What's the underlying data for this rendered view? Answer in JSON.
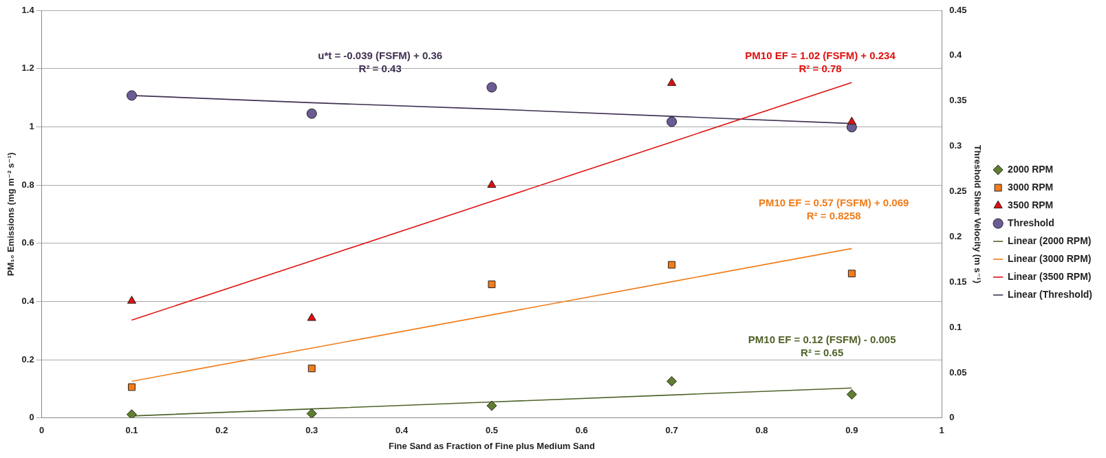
{
  "chart_data": {
    "type": "scatter",
    "xlabel": "Fine Sand as Fraction of Fine plus Medium Sand",
    "ylabel": "PM₁₀ Emissions (mg m⁻² s⁻¹)",
    "y2label": "Threshold Shear Velocity (m s⁻¹)",
    "x": [
      0.1,
      0.3,
      0.5,
      0.7,
      0.9
    ],
    "series": [
      {
        "name": "2000 RPM",
        "marker": "diamond",
        "color": "#5f7f2f",
        "values": [
          0.012,
          0.015,
          0.042,
          0.126,
          0.081
        ]
      },
      {
        "name": "3000 RPM",
        "marker": "square",
        "color": "#f07c1a",
        "values": [
          0.106,
          0.17,
          0.459,
          0.526,
          0.496
        ]
      },
      {
        "name": "3500 RPM",
        "marker": "triangle",
        "color": "#e01010",
        "values": [
          0.402,
          0.343,
          0.8,
          1.15,
          1.017
        ]
      },
      {
        "name": "Threshold",
        "marker": "circle",
        "color": "#6b5b95",
        "axis": "y2",
        "values": [
          0.356,
          0.336,
          0.365,
          0.327,
          0.321
        ]
      },
      {
        "name": "Linear (2000 RPM)",
        "type": "line",
        "marker": "none",
        "color": "#4f6228",
        "values": [
          0.007,
          0.031,
          0.055,
          0.079,
          0.103
        ]
      },
      {
        "name": "Linear (3000 RPM)",
        "type": "line",
        "marker": "none",
        "color": "#f07c1a",
        "values": [
          0.126,
          0.24,
          0.354,
          0.468,
          0.582
        ]
      },
      {
        "name": "Linear (3500 RPM)",
        "type": "line",
        "marker": "none",
        "color": "#e01010",
        "values": [
          0.336,
          0.54,
          0.744,
          0.948,
          1.152
        ]
      },
      {
        "name": "Linear (Threshold)",
        "type": "line",
        "marker": "none",
        "color": "#3f3151",
        "axis": "y2",
        "values": [
          0.356,
          0.348,
          0.341,
          0.333,
          0.325
        ]
      }
    ],
    "annotations": [
      "PM10 EF = 0.12 (FSFM) - 0.005\nR² = 0.65",
      "PM10 EF = 0.57 (FSFM) + 0.069\nR² = 0.8258",
      "PM10 EF = 1.02 (FSFM) + 0.234\nR² = 0.78",
      "u*t = -0.039 (FSFM) + 0.36\nR² = 0.43"
    ],
    "xlim": [
      0,
      1
    ],
    "xticks": [
      0,
      0.1,
      0.2,
      0.3,
      0.4,
      0.5,
      0.6,
      0.7,
      0.8,
      0.9,
      1
    ],
    "ylim": [
      0,
      1.4
    ],
    "yticks": [
      0,
      0.2,
      0.4,
      0.6,
      0.8,
      1,
      1.2,
      1.4
    ],
    "y2lim": [
      0,
      0.45
    ],
    "y2ticks": [
      0,
      0.05,
      0.1,
      0.15,
      0.2,
      0.25,
      0.3,
      0.35,
      0.4,
      0.45
    ],
    "grid": "y",
    "legend": "right"
  }
}
